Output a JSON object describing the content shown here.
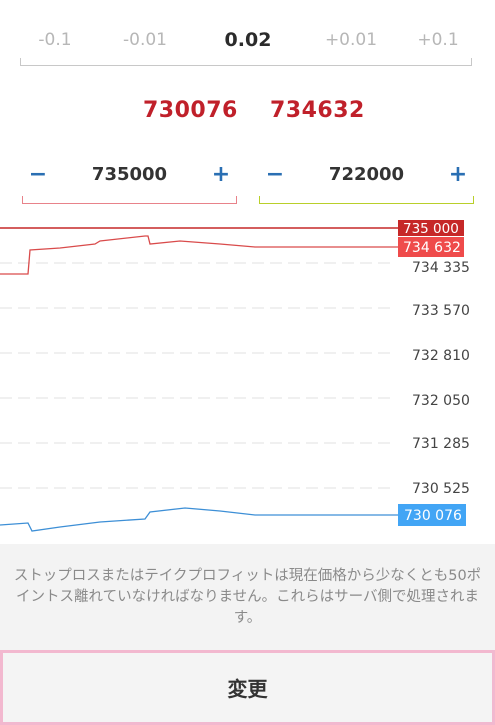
{
  "volume": {
    "steps": [
      "-0.1",
      "-0.01",
      "0.02",
      "+0.01",
      "+0.1"
    ]
  },
  "prices": {
    "bid": "730076",
    "ask": "734632"
  },
  "stop_loss": {
    "minus": "−",
    "value": "735000",
    "plus": "+",
    "color": "#e8828a"
  },
  "take_profit": {
    "minus": "−",
    "value": "722000",
    "plus": "+",
    "color": "#b9cf2a"
  },
  "chart": {
    "tick_labels": [
      "734 335",
      "733 570",
      "732 810",
      "732 050",
      "731 285",
      "730 525"
    ],
    "sl_label": "735 000",
    "ask_label": "734 632",
    "bid_label": "730 076",
    "colors": {
      "sl": "#c62828",
      "ask": "#ef4b4b",
      "bid": "#42a5f5"
    }
  },
  "note": "ストップロスまたはテイクプロフィットは現在価格から少なくとも50ポイントス離れていなければなりません。これらはサーバ側で処理されます。",
  "change_button": "変更"
}
